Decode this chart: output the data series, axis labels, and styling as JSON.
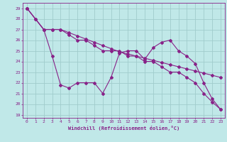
{
  "bg_color": "#c0e8e8",
  "grid_color": "#a0cccc",
  "line_color": "#882288",
  "marker_color": "#882288",
  "xlabel": "Windchill (Refroidissement éolien,°C)",
  "xlabel_color": "#882288",
  "tick_color": "#882288",
  "xlim": [
    -0.5,
    23.5
  ],
  "ylim": [
    18.7,
    29.5
  ],
  "yticks": [
    19,
    20,
    21,
    22,
    23,
    24,
    25,
    26,
    27,
    28,
    29
  ],
  "xticks": [
    0,
    1,
    2,
    3,
    4,
    5,
    6,
    7,
    8,
    9,
    10,
    11,
    12,
    13,
    14,
    15,
    16,
    17,
    18,
    19,
    20,
    21,
    22,
    23
  ],
  "series1_x": [
    0,
    1,
    2,
    3,
    4,
    5,
    6,
    7,
    8,
    9,
    10,
    11,
    12,
    13,
    14,
    15,
    16,
    17,
    18,
    19,
    20,
    21,
    22,
    23
  ],
  "series1_y": [
    29,
    28,
    27,
    27,
    27,
    26.7,
    26.4,
    26.1,
    25.8,
    25.5,
    25.2,
    24.9,
    24.7,
    24.5,
    24.3,
    24.1,
    23.9,
    23.7,
    23.5,
    23.3,
    23.1,
    22.9,
    22.7,
    22.5
  ],
  "series2_x": [
    0,
    2,
    3,
    4,
    5,
    6,
    7,
    8,
    9,
    10,
    11,
    12,
    13,
    14,
    15,
    16,
    17,
    18,
    19,
    20,
    21,
    22,
    23
  ],
  "series2_y": [
    29,
    27,
    27,
    27,
    26.5,
    26,
    26,
    25.5,
    25,
    25,
    25,
    24.5,
    24.5,
    24,
    24,
    23.5,
    23,
    23,
    22.5,
    22,
    21,
    20.2,
    19.5
  ],
  "series3_x": [
    0,
    1,
    2,
    3,
    4,
    5,
    6,
    7,
    8,
    9,
    10,
    11,
    12,
    13,
    14,
    15,
    16,
    17,
    18,
    19,
    20,
    21,
    22,
    23
  ],
  "series3_y": [
    29,
    28,
    27,
    24.5,
    21.8,
    21.5,
    22,
    22,
    22,
    21,
    22.5,
    24.8,
    25,
    25,
    24.2,
    25.3,
    25.8,
    26,
    25,
    24.5,
    23.8,
    22,
    20.5,
    19.5
  ]
}
